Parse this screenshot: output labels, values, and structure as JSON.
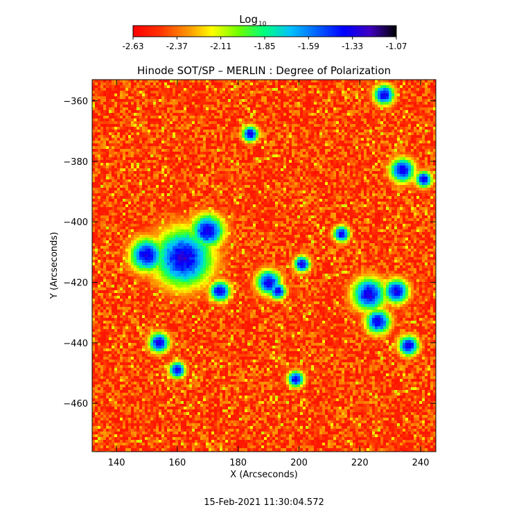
{
  "chart_data": {
    "type": "heatmap",
    "title": "Hinode SOT/SP – MERLIN : Degree of Polarization",
    "xlabel": "X (Arcseconds)",
    "ylabel": "Y (Arcseconds)",
    "xlim": [
      132,
      245
    ],
    "ylim": [
      -476,
      -353
    ],
    "x_ticks": [
      140,
      160,
      180,
      200,
      220,
      240
    ],
    "y_ticks": [
      -360,
      -380,
      -400,
      -420,
      -440,
      -460
    ],
    "colorbar": {
      "label_main": "Log",
      "label_sub": "10",
      "range": [
        -2.63,
        -1.07
      ],
      "ticks": [
        "-2.63",
        "-2.37",
        "-2.11",
        "-1.85",
        "-1.59",
        "-1.33",
        "-1.07"
      ],
      "colormap": "rainbow"
    },
    "strong_regions": [
      {
        "x": 162,
        "y": -412,
        "r": 7
      },
      {
        "x": 150,
        "y": -411,
        "r": 4
      },
      {
        "x": 170,
        "y": -403,
        "r": 4
      },
      {
        "x": 174,
        "y": -423,
        "r": 2.5
      },
      {
        "x": 190,
        "y": -420,
        "r": 3
      },
      {
        "x": 223,
        "y": -424,
        "r": 4
      },
      {
        "x": 232,
        "y": -423,
        "r": 3
      },
      {
        "x": 226,
        "y": -433,
        "r": 3
      },
      {
        "x": 236,
        "y": -441,
        "r": 2.5
      },
      {
        "x": 234,
        "y": -383,
        "r": 3
      },
      {
        "x": 241,
        "y": -386,
        "r": 2
      },
      {
        "x": 228,
        "y": -358,
        "r": 2.5
      },
      {
        "x": 154,
        "y": -440,
        "r": 2.5
      },
      {
        "x": 160,
        "y": -449,
        "r": 2
      },
      {
        "x": 199,
        "y": -452,
        "r": 2
      },
      {
        "x": 193,
        "y": -423,
        "r": 2
      },
      {
        "x": 201,
        "y": -414,
        "r": 2
      },
      {
        "x": 214,
        "y": -404,
        "r": 2
      },
      {
        "x": 184,
        "y": -371,
        "r": 2
      }
    ]
  },
  "footer": {
    "timestamp": "15-Feb-2021 11:30:04.572"
  },
  "colors": {
    "background": "#ffffff",
    "base_map": "#ff2000",
    "strong": "#1010c0"
  }
}
